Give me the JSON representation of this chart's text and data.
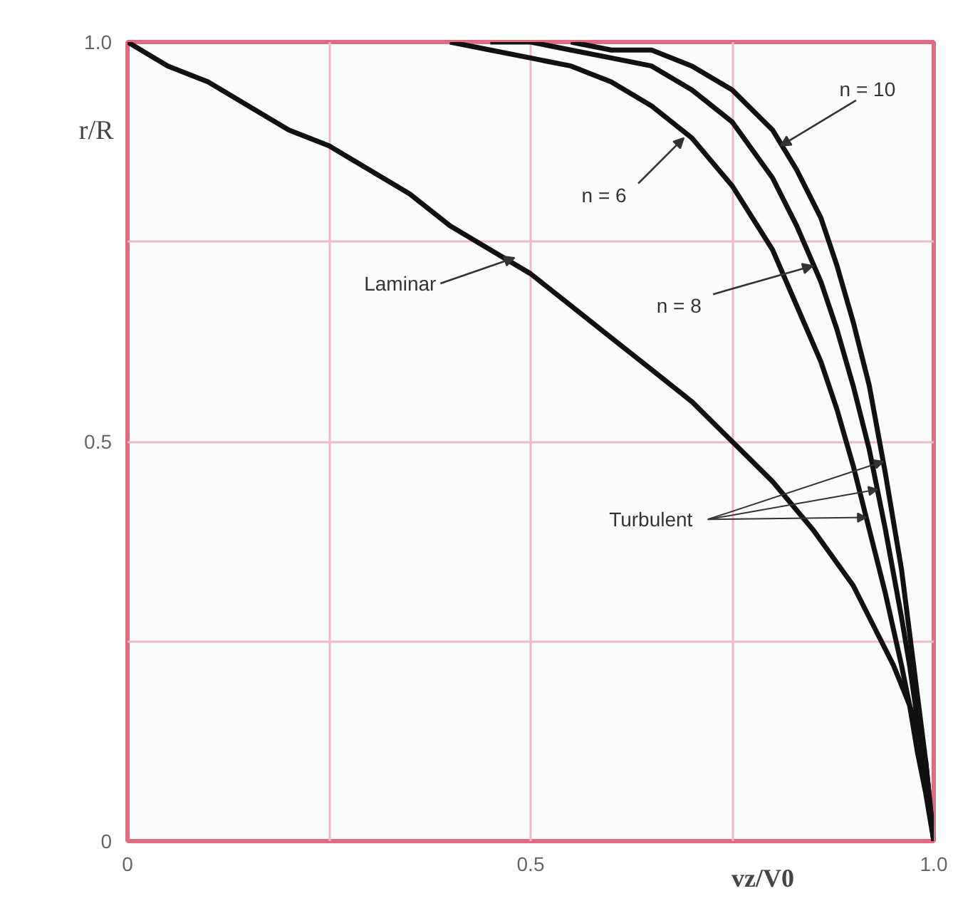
{
  "chart_data": {
    "type": "line",
    "xlabel": "vz/V0",
    "ylabel": "r/R",
    "xlim": [
      0,
      1
    ],
    "ylim": [
      0,
      1
    ],
    "xticks": [
      {
        "value": 0,
        "label": "0"
      },
      {
        "value": 0.25,
        "label": null
      },
      {
        "value": 0.5,
        "label": "0.5"
      },
      {
        "value": 0.75,
        "label": null
      },
      {
        "value": 1,
        "label": "1.0"
      }
    ],
    "yticks": [
      {
        "value": 0,
        "label": "0"
      },
      {
        "value": 0.25,
        "label": null
      },
      {
        "value": 0.5,
        "label": "0.5"
      },
      {
        "value": 0.75,
        "label": null
      },
      {
        "value": 1,
        "label": "1.0"
      }
    ],
    "grid": true,
    "line_style": "solid",
    "series": [
      {
        "color": "#111111",
        "x": [
          0,
          0.05,
          0.1,
          0.15,
          0.2,
          0.25,
          0.3,
          0.35,
          0.4,
          0.45,
          0.5,
          0.55,
          0.6,
          0.65,
          0.7,
          0.75,
          0.8,
          0.85,
          0.9,
          0.93,
          0.95,
          0.97,
          0.98,
          0.99,
          1.0
        ],
        "values": [
          1,
          0.97,
          0.95,
          0.92,
          0.89,
          0.87,
          0.84,
          0.81,
          0.77,
          0.74,
          0.71,
          0.67,
          0.63,
          0.59,
          0.55,
          0.5,
          0.45,
          0.39,
          0.32,
          0.26,
          0.22,
          0.17,
          0.14,
          0.1,
          0
        ]
      },
      {
        "color": "#111111",
        "x": [
          0.4,
          0.45,
          0.5,
          0.55,
          0.6,
          0.65,
          0.7,
          0.75,
          0.8,
          0.83,
          0.86,
          0.88,
          0.9,
          0.92,
          0.94,
          0.96,
          0.97,
          0.98,
          0.99,
          0.995,
          1.0
        ],
        "values": [
          1.0,
          0.99,
          0.98,
          0.97,
          0.95,
          0.92,
          0.88,
          0.82,
          0.74,
          0.67,
          0.6,
          0.54,
          0.47,
          0.39,
          0.31,
          0.22,
          0.17,
          0.11,
          0.06,
          0.03,
          0
        ]
      },
      {
        "color": "#111111",
        "x": [
          0.45,
          0.5,
          0.55,
          0.6,
          0.65,
          0.7,
          0.75,
          0.8,
          0.83,
          0.86,
          0.88,
          0.9,
          0.92,
          0.94,
          0.96,
          0.97,
          0.98,
          0.99,
          0.995,
          1.0
        ],
        "values": [
          1.0,
          1.0,
          0.99,
          0.98,
          0.97,
          0.94,
          0.9,
          0.83,
          0.77,
          0.7,
          0.64,
          0.57,
          0.49,
          0.39,
          0.28,
          0.22,
          0.15,
          0.08,
          0.04,
          0
        ]
      },
      {
        "color": "#111111",
        "x": [
          0.55,
          0.6,
          0.65,
          0.7,
          0.75,
          0.8,
          0.83,
          0.86,
          0.88,
          0.9,
          0.92,
          0.94,
          0.96,
          0.97,
          0.98,
          0.99,
          0.995,
          1.0
        ],
        "values": [
          1.0,
          0.99,
          0.99,
          0.97,
          0.94,
          0.89,
          0.84,
          0.78,
          0.72,
          0.65,
          0.57,
          0.46,
          0.34,
          0.26,
          0.18,
          0.1,
          0.05,
          0
        ]
      }
    ],
    "annotations": [
      {
        "text": "Laminar",
        "x": 0.48,
        "y": 0.73
      },
      {
        "text": "n = 6",
        "x": 0.69,
        "y": 0.88
      },
      {
        "text": "n = 8",
        "x": 0.85,
        "y": 0.72
      },
      {
        "text": "n = 10",
        "x": 0.81,
        "y": 0.87
      },
      {
        "text": "Turbulent",
        "x": 0.93,
        "y": 0.44
      }
    ]
  }
}
